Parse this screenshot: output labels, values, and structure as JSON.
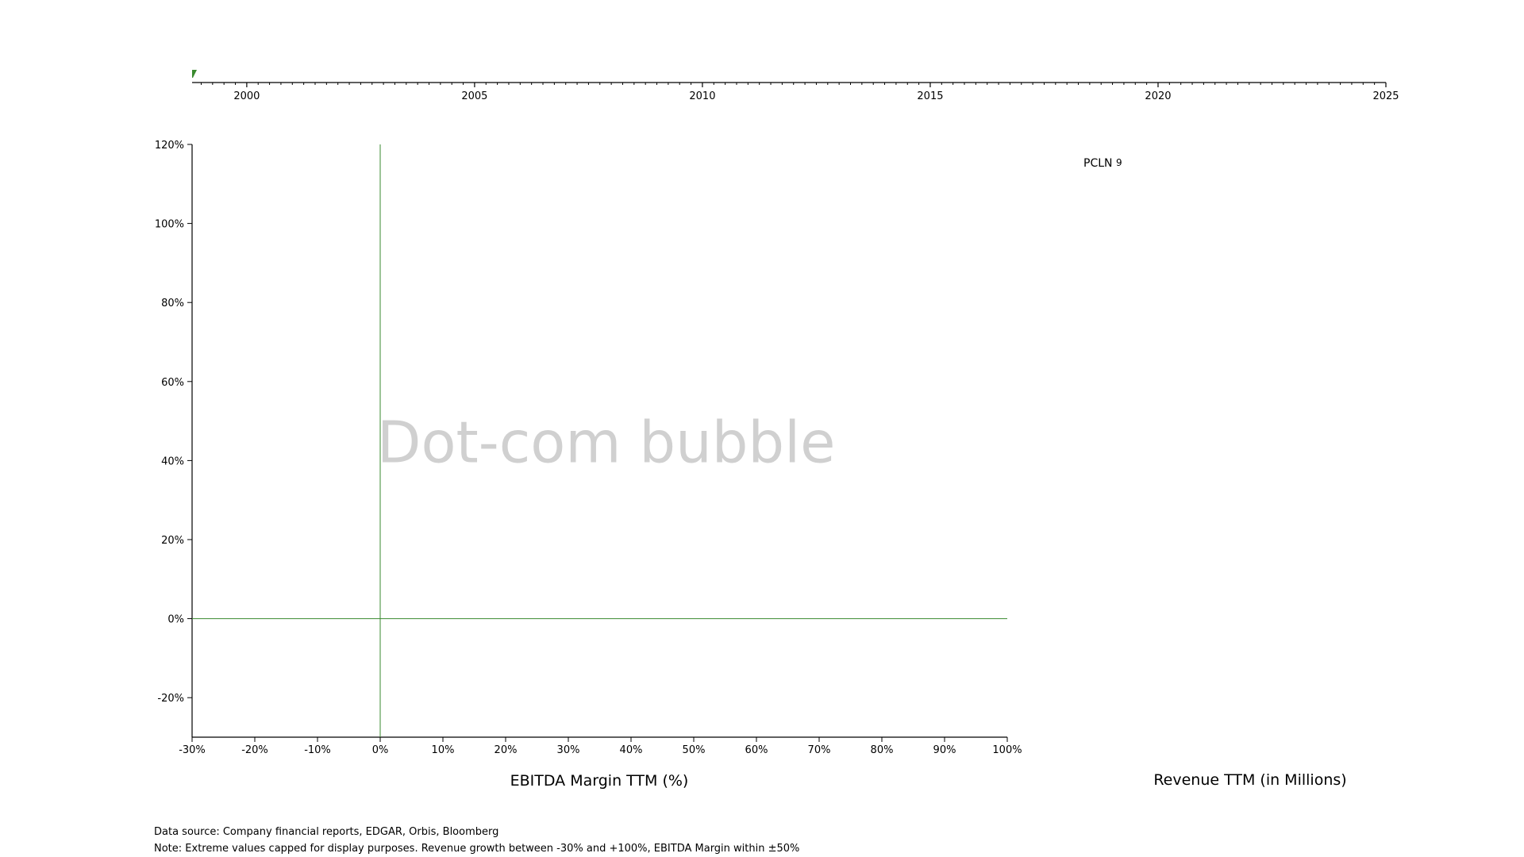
{
  "colors": {
    "accent": "#3a8a2f",
    "axis": "#000000",
    "watermark": "#d0d0d0"
  },
  "chart_data": [
    {
      "type": "timeline",
      "x_ticks": [
        "2000",
        "2005",
        "2010",
        "2015",
        "2020",
        "2025"
      ],
      "xlim": [
        1998.8,
        2025
      ],
      "current_position": 1998.8,
      "marker_color": "#3a8a2f"
    },
    {
      "type": "scatter",
      "watermark": "Dot-com bubble",
      "xlabel": "EBITDA Margin TTM (%)",
      "ylabel": "",
      "xlim": [
        -30,
        100
      ],
      "ylim": [
        -30,
        120
      ],
      "x_ticks": [
        "-30%",
        "-20%",
        "-10%",
        "0%",
        "10%",
        "20%",
        "30%",
        "40%",
        "50%",
        "60%",
        "70%",
        "80%",
        "90%",
        "100%"
      ],
      "y_ticks": [
        "120%",
        "100%",
        "80%",
        "60%",
        "40%",
        "20%",
        "0%",
        "-20%"
      ],
      "reference_lines": {
        "x": 0,
        "y": 0
      },
      "points": []
    },
    {
      "type": "bar",
      "xlabel": "Revenue TTM (in Millions)",
      "categories": [
        "PCLN"
      ],
      "values": [
        9
      ]
    }
  ],
  "footnotes": {
    "source": "Data source: Company financial reports, EDGAR, Orbis, Bloomberg",
    "note": "Note: Extreme values capped for display purposes. Revenue growth between -30% and +100%, EBITDA Margin within ±50%"
  }
}
